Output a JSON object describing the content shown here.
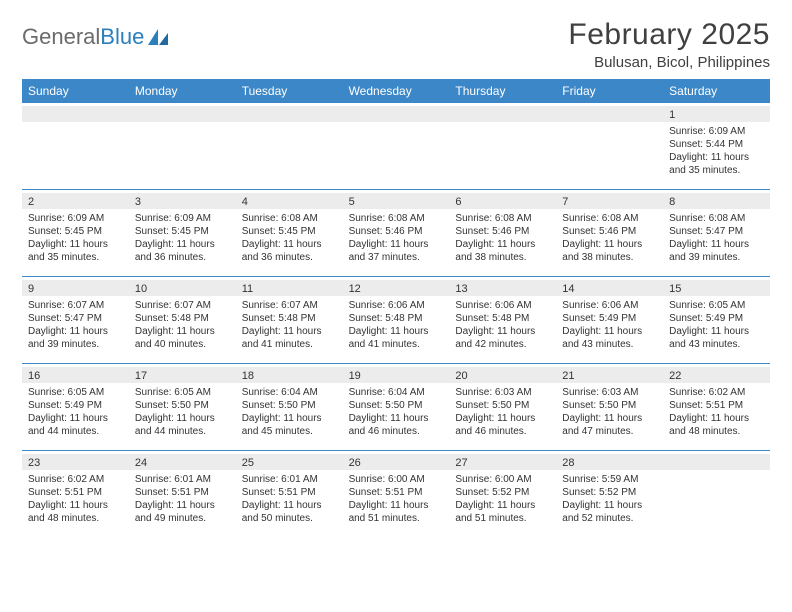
{
  "logo": {
    "text1": "General",
    "text2": "Blue"
  },
  "title": "February 2025",
  "location": "Bulusan, Bicol, Philippines",
  "colors": {
    "header_bg": "#3c87c7",
    "header_text": "#ffffff",
    "daynum_bg": "#ececec",
    "rule": "#3c87c7",
    "text": "#333333",
    "logo_gray": "#6b6b6b",
    "logo_blue": "#2a7fbd"
  },
  "day_names": [
    "Sunday",
    "Monday",
    "Tuesday",
    "Wednesday",
    "Thursday",
    "Friday",
    "Saturday"
  ],
  "labels": {
    "sunrise": "Sunrise:",
    "sunset": "Sunset:",
    "daylight": "Daylight:"
  },
  "weeks": [
    [
      {
        "day": "",
        "sunrise": "",
        "sunset": "",
        "daylight": ""
      },
      {
        "day": "",
        "sunrise": "",
        "sunset": "",
        "daylight": ""
      },
      {
        "day": "",
        "sunrise": "",
        "sunset": "",
        "daylight": ""
      },
      {
        "day": "",
        "sunrise": "",
        "sunset": "",
        "daylight": ""
      },
      {
        "day": "",
        "sunrise": "",
        "sunset": "",
        "daylight": ""
      },
      {
        "day": "",
        "sunrise": "",
        "sunset": "",
        "daylight": ""
      },
      {
        "day": "1",
        "sunrise": "6:09 AM",
        "sunset": "5:44 PM",
        "daylight": "11 hours and 35 minutes."
      }
    ],
    [
      {
        "day": "2",
        "sunrise": "6:09 AM",
        "sunset": "5:45 PM",
        "daylight": "11 hours and 35 minutes."
      },
      {
        "day": "3",
        "sunrise": "6:09 AM",
        "sunset": "5:45 PM",
        "daylight": "11 hours and 36 minutes."
      },
      {
        "day": "4",
        "sunrise": "6:08 AM",
        "sunset": "5:45 PM",
        "daylight": "11 hours and 36 minutes."
      },
      {
        "day": "5",
        "sunrise": "6:08 AM",
        "sunset": "5:46 PM",
        "daylight": "11 hours and 37 minutes."
      },
      {
        "day": "6",
        "sunrise": "6:08 AM",
        "sunset": "5:46 PM",
        "daylight": "11 hours and 38 minutes."
      },
      {
        "day": "7",
        "sunrise": "6:08 AM",
        "sunset": "5:46 PM",
        "daylight": "11 hours and 38 minutes."
      },
      {
        "day": "8",
        "sunrise": "6:08 AM",
        "sunset": "5:47 PM",
        "daylight": "11 hours and 39 minutes."
      }
    ],
    [
      {
        "day": "9",
        "sunrise": "6:07 AM",
        "sunset": "5:47 PM",
        "daylight": "11 hours and 39 minutes."
      },
      {
        "day": "10",
        "sunrise": "6:07 AM",
        "sunset": "5:48 PM",
        "daylight": "11 hours and 40 minutes."
      },
      {
        "day": "11",
        "sunrise": "6:07 AM",
        "sunset": "5:48 PM",
        "daylight": "11 hours and 41 minutes."
      },
      {
        "day": "12",
        "sunrise": "6:06 AM",
        "sunset": "5:48 PM",
        "daylight": "11 hours and 41 minutes."
      },
      {
        "day": "13",
        "sunrise": "6:06 AM",
        "sunset": "5:48 PM",
        "daylight": "11 hours and 42 minutes."
      },
      {
        "day": "14",
        "sunrise": "6:06 AM",
        "sunset": "5:49 PM",
        "daylight": "11 hours and 43 minutes."
      },
      {
        "day": "15",
        "sunrise": "6:05 AM",
        "sunset": "5:49 PM",
        "daylight": "11 hours and 43 minutes."
      }
    ],
    [
      {
        "day": "16",
        "sunrise": "6:05 AM",
        "sunset": "5:49 PM",
        "daylight": "11 hours and 44 minutes."
      },
      {
        "day": "17",
        "sunrise": "6:05 AM",
        "sunset": "5:50 PM",
        "daylight": "11 hours and 44 minutes."
      },
      {
        "day": "18",
        "sunrise": "6:04 AM",
        "sunset": "5:50 PM",
        "daylight": "11 hours and 45 minutes."
      },
      {
        "day": "19",
        "sunrise": "6:04 AM",
        "sunset": "5:50 PM",
        "daylight": "11 hours and 46 minutes."
      },
      {
        "day": "20",
        "sunrise": "6:03 AM",
        "sunset": "5:50 PM",
        "daylight": "11 hours and 46 minutes."
      },
      {
        "day": "21",
        "sunrise": "6:03 AM",
        "sunset": "5:50 PM",
        "daylight": "11 hours and 47 minutes."
      },
      {
        "day": "22",
        "sunrise": "6:02 AM",
        "sunset": "5:51 PM",
        "daylight": "11 hours and 48 minutes."
      }
    ],
    [
      {
        "day": "23",
        "sunrise": "6:02 AM",
        "sunset": "5:51 PM",
        "daylight": "11 hours and 48 minutes."
      },
      {
        "day": "24",
        "sunrise": "6:01 AM",
        "sunset": "5:51 PM",
        "daylight": "11 hours and 49 minutes."
      },
      {
        "day": "25",
        "sunrise": "6:01 AM",
        "sunset": "5:51 PM",
        "daylight": "11 hours and 50 minutes."
      },
      {
        "day": "26",
        "sunrise": "6:00 AM",
        "sunset": "5:51 PM",
        "daylight": "11 hours and 51 minutes."
      },
      {
        "day": "27",
        "sunrise": "6:00 AM",
        "sunset": "5:52 PM",
        "daylight": "11 hours and 51 minutes."
      },
      {
        "day": "28",
        "sunrise": "5:59 AM",
        "sunset": "5:52 PM",
        "daylight": "11 hours and 52 minutes."
      },
      {
        "day": "",
        "sunrise": "",
        "sunset": "",
        "daylight": ""
      }
    ]
  ]
}
